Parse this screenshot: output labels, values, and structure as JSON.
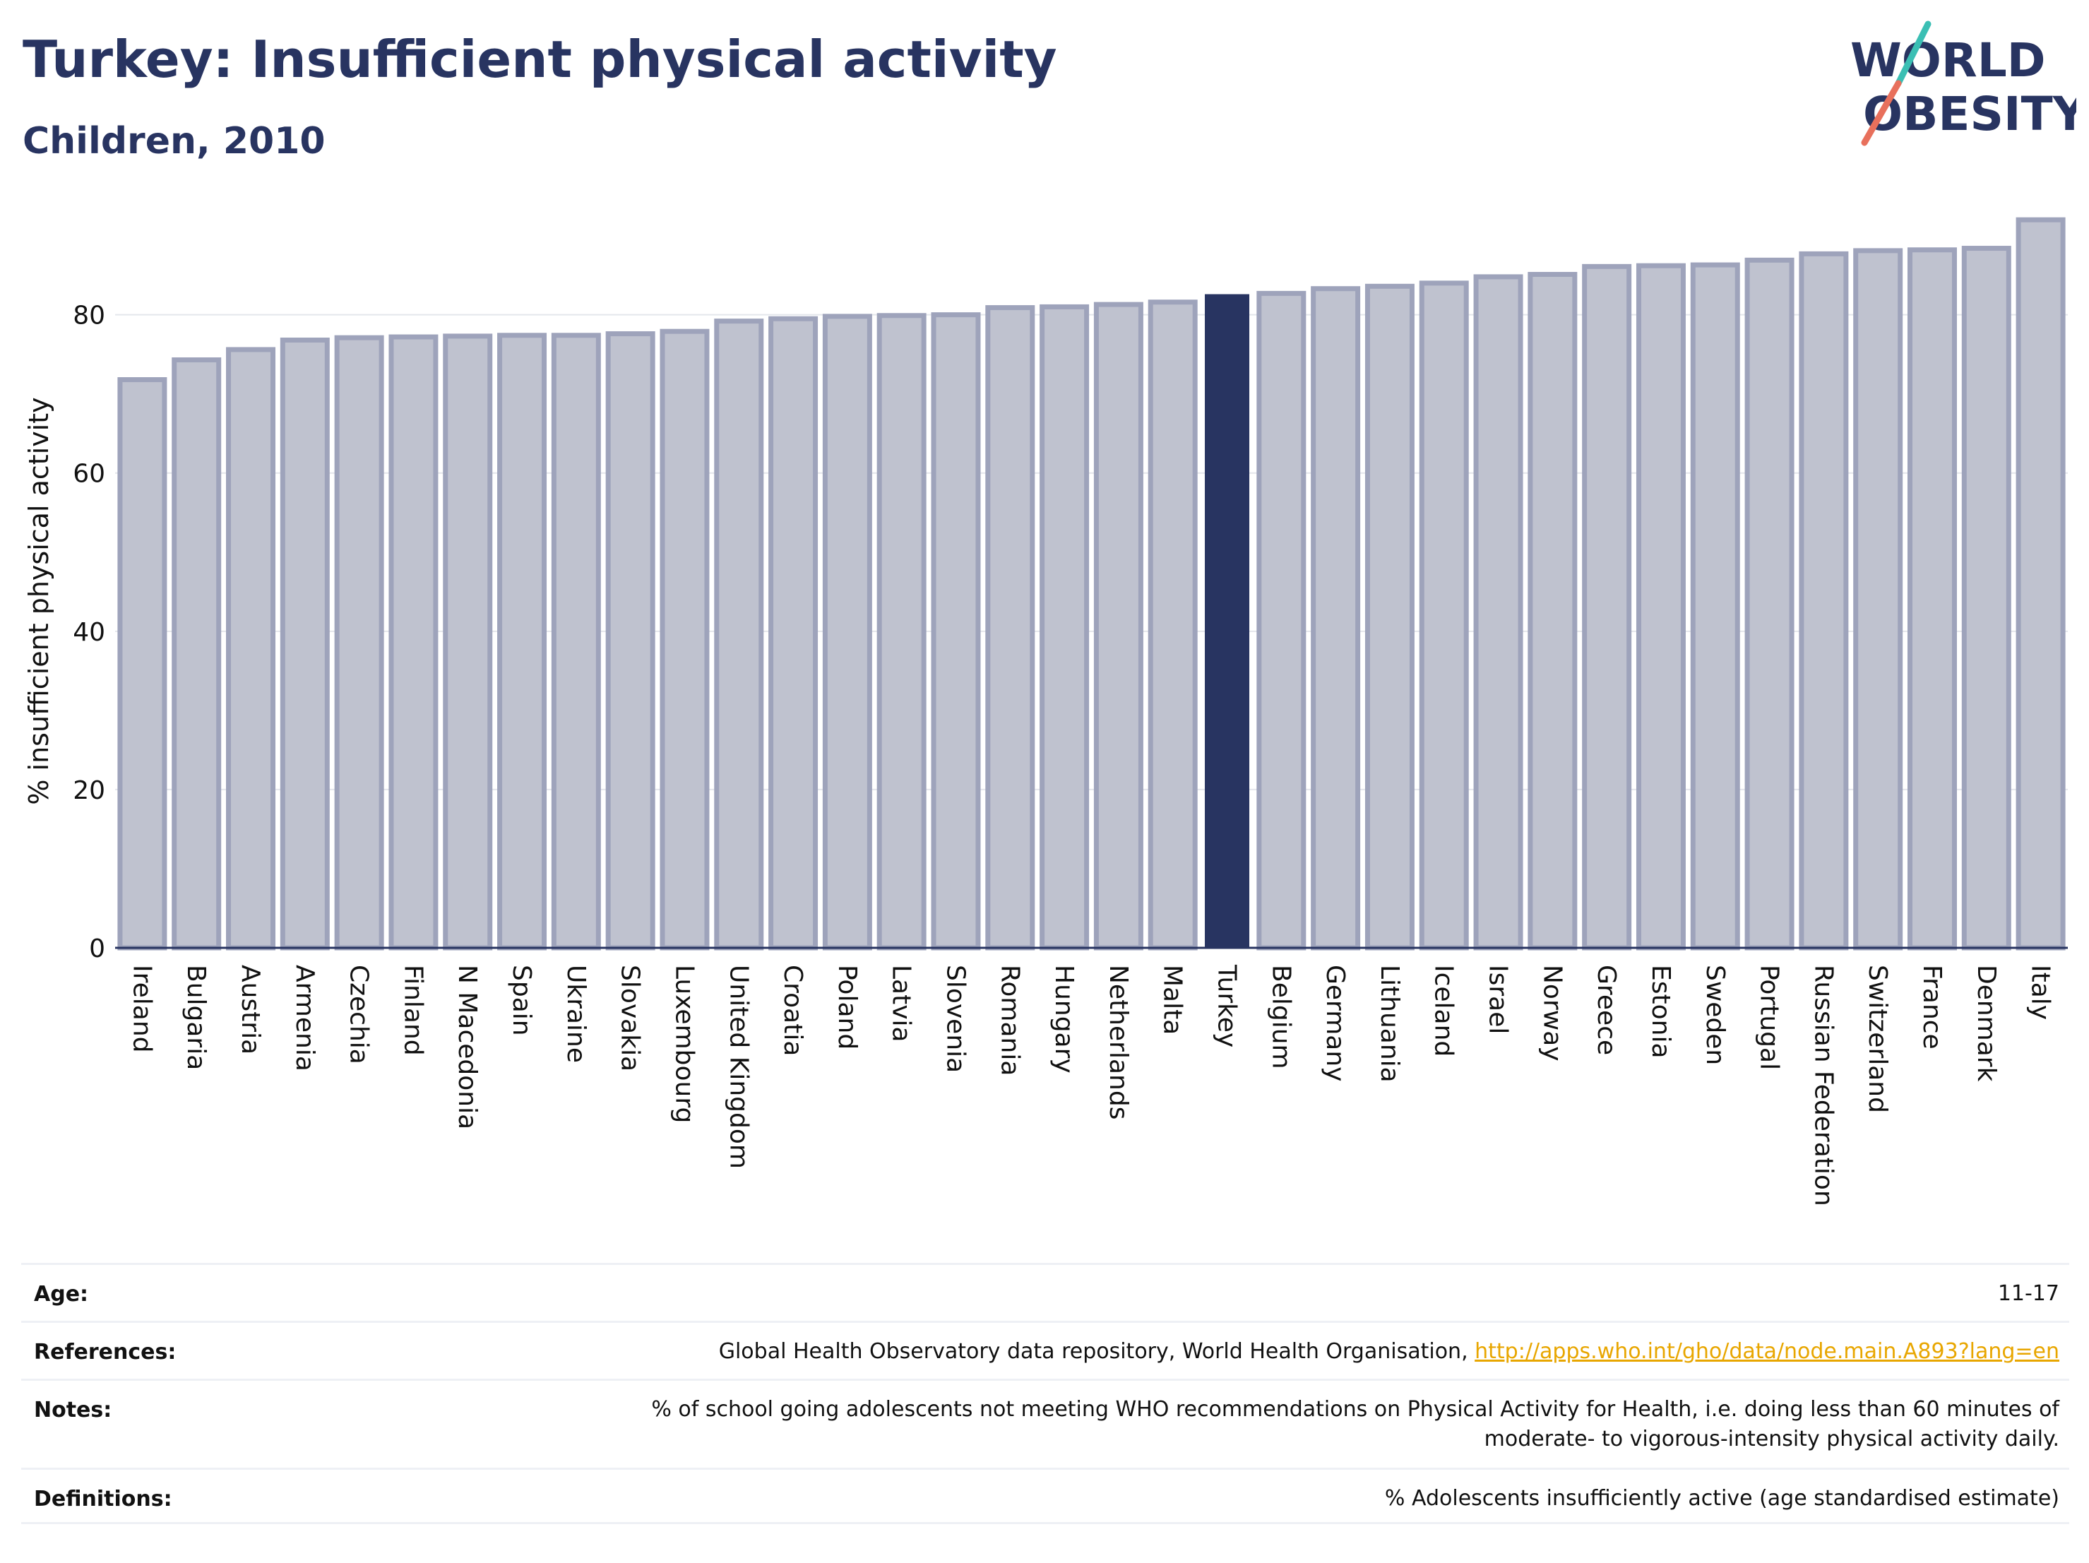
{
  "header": {
    "title": "Turkey: Insufficient physical activity",
    "subtitle": "Children, 2010",
    "logo": {
      "line1": "WORLD",
      "line2": "OBESITY",
      "colors": {
        "text": "#283461",
        "slash_top": "#3bbfb4",
        "slash_bottom": "#e8705c"
      }
    }
  },
  "chart_data": {
    "type": "bar",
    "title": "",
    "xlabel": "",
    "ylabel": "% insufficient physical activity",
    "ylim": [
      0,
      93
    ],
    "yticks": [
      0,
      20,
      40,
      60,
      80
    ],
    "grid": true,
    "highlight": "Turkey",
    "colors": {
      "bar": "#bfc2cf",
      "bar_border": "#9ea3bb",
      "highlight": "#283461",
      "grid": "#e4e6ec",
      "axis": "#283461"
    },
    "categories": [
      "Ireland",
      "Bulgaria",
      "Austria",
      "Armenia",
      "Czechia",
      "Finland",
      "N Macedonia",
      "Spain",
      "Ukraine",
      "Slovakia",
      "Luxembourg",
      "United Kingdom",
      "Croatia",
      "Poland",
      "Latvia",
      "Slovenia",
      "Romania",
      "Hungary",
      "Netherlands",
      "Malta",
      "Turkey",
      "Belgium",
      "Germany",
      "Lithuania",
      "Iceland",
      "Israel",
      "Norway",
      "Greece",
      "Estonia",
      "Sweden",
      "Portugal",
      "Russian Federation",
      "Switzerland",
      "France",
      "Denmark",
      "Italy"
    ],
    "values": [
      71.8,
      74.3,
      75.6,
      76.8,
      77.1,
      77.2,
      77.3,
      77.4,
      77.4,
      77.6,
      77.9,
      79.2,
      79.5,
      79.8,
      79.9,
      80.0,
      80.9,
      81.0,
      81.3,
      81.6,
      82.6,
      82.7,
      83.3,
      83.6,
      84.0,
      84.8,
      85.1,
      86.1,
      86.2,
      86.3,
      86.9,
      87.7,
      88.1,
      88.2,
      88.4,
      92.0
    ]
  },
  "footer": {
    "age": {
      "label": "Age:",
      "value": "11-17"
    },
    "references": {
      "label": "References:",
      "text": "Global Health Observatory data repository, World Health Organisation, ",
      "link": "http://apps.who.int/gho/data/node.main.A893?lang=en"
    },
    "notes": {
      "label": "Notes:",
      "line1": "% of school going adolescents not meeting WHO recommendations on Physical Activity for Health, i.e. doing less than 60 minutes of",
      "line2": "moderate- to vigorous-intensity physical activity daily."
    },
    "definitions": {
      "label": "Definitions:",
      "value": "% Adolescents insufficiently active (age standardised estimate)"
    }
  }
}
